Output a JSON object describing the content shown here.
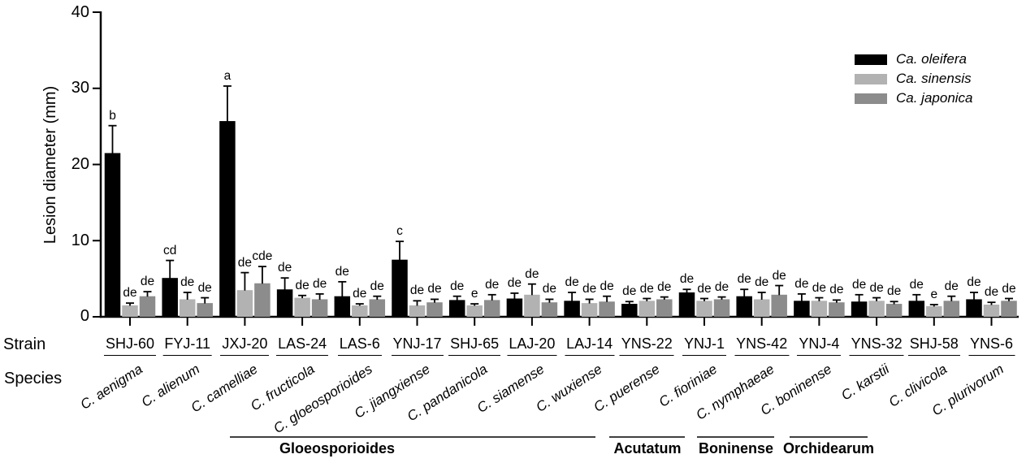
{
  "chart_data": {
    "type": "bar",
    "title": "",
    "ylabel": "Lesion diameter (mm)",
    "xlabel": "",
    "ylim": [
      0,
      40
    ],
    "yticks": [
      0,
      10,
      20,
      30,
      40
    ],
    "grid": false,
    "legend_position": "top-right",
    "x_axis_rows": {
      "strain": "Strain",
      "species": "Species"
    },
    "series": [
      {
        "name": "Ca. oleifera",
        "color": "#000000"
      },
      {
        "name": "Ca. sinensis",
        "color": "#b2b2b2"
      },
      {
        "name": "Ca. japonica",
        "color": "#8c8c8c"
      }
    ],
    "groups": [
      {
        "strain": "SHJ-60",
        "species": "C. aenigma",
        "values": [
          21.5,
          1.5,
          2.7
        ],
        "errors_up": [
          3.6,
          0.3,
          0.6
        ],
        "letters": [
          "b",
          "de",
          "de"
        ]
      },
      {
        "strain": "FYJ-11",
        "species": "C. alienum",
        "values": [
          5.1,
          2.3,
          1.8
        ],
        "errors_up": [
          2.3,
          0.9,
          0.7
        ],
        "letters": [
          "cd",
          "de",
          "de"
        ]
      },
      {
        "strain": "JXJ-20",
        "species": "C. camelliae",
        "values": [
          25.7,
          3.5,
          4.4
        ],
        "errors_up": [
          4.6,
          2.3,
          2.2
        ],
        "letters": [
          "a",
          "de",
          "cde"
        ]
      },
      {
        "strain": "LAS-24",
        "species": "C. fructicola",
        "values": [
          3.6,
          2.5,
          2.3
        ],
        "errors_up": [
          1.5,
          0.3,
          0.7
        ],
        "letters": [
          "de",
          "de",
          "de"
        ]
      },
      {
        "strain": "LAS-6",
        "species": "C. gloeosporioides",
        "values": [
          2.7,
          1.5,
          2.3
        ],
        "errors_up": [
          1.9,
          0.2,
          0.4
        ],
        "letters": [
          "de",
          "de",
          "de"
        ]
      },
      {
        "strain": "YNJ-17",
        "species": "C. jiangxiense",
        "values": [
          7.5,
          1.5,
          1.9
        ],
        "errors_up": [
          2.4,
          0.6,
          0.4
        ],
        "letters": [
          "c",
          "de",
          "de"
        ]
      },
      {
        "strain": "SHJ-65",
        "species": "C. pandanicola",
        "values": [
          2.2,
          1.5,
          2.2
        ],
        "errors_up": [
          0.5,
          0.2,
          0.7
        ],
        "letters": [
          "de",
          "e",
          "de"
        ]
      },
      {
        "strain": "LAJ-20",
        "species": "C. siamense",
        "values": [
          2.4,
          2.9,
          1.9
        ],
        "errors_up": [
          0.7,
          1.4,
          0.4
        ],
        "letters": [
          "de",
          "de",
          "de"
        ]
      },
      {
        "strain": "LAJ-14",
        "species": "C. wuxiense",
        "values": [
          2.1,
          1.8,
          2.0
        ],
        "errors_up": [
          1.1,
          0.5,
          0.7
        ],
        "letters": [
          "de",
          "de",
          "de"
        ]
      },
      {
        "strain": "YNS-22",
        "species": "C. puerense",
        "values": [
          1.7,
          2.1,
          2.3
        ],
        "errors_up": [
          0.3,
          0.3,
          0.3
        ],
        "letters": [
          "de",
          "de",
          "de"
        ]
      },
      {
        "strain": "YNJ-1",
        "species": "C. fioriniae",
        "values": [
          3.2,
          2.1,
          2.3
        ],
        "errors_up": [
          0.4,
          0.3,
          0.3
        ],
        "letters": [
          "de",
          "de",
          "de"
        ]
      },
      {
        "strain": "YNS-42",
        "species": "C. nymphaeae",
        "values": [
          2.7,
          2.3,
          2.9
        ],
        "errors_up": [
          0.9,
          0.9,
          1.2
        ],
        "letters": [
          "de",
          "de",
          "de"
        ]
      },
      {
        "strain": "YNJ-4",
        "species": "C. boninense",
        "values": [
          2.1,
          2.1,
          1.9
        ],
        "errors_up": [
          0.9,
          0.4,
          0.3
        ],
        "letters": [
          "de",
          "de",
          "de"
        ]
      },
      {
        "strain": "YNS-32",
        "species": "C. karstii",
        "values": [
          2.0,
          2.1,
          1.7
        ],
        "errors_up": [
          0.9,
          0.4,
          0.3
        ],
        "letters": [
          "de",
          "de",
          "de"
        ]
      },
      {
        "strain": "SHJ-58",
        "species": "C. clivicola",
        "values": [
          2.1,
          1.4,
          2.1
        ],
        "errors_up": [
          0.8,
          0.2,
          0.6
        ],
        "letters": [
          "de",
          "e",
          "de"
        ]
      },
      {
        "strain": "YNS-6",
        "species": "C. plurivorum",
        "values": [
          2.3,
          1.6,
          2.1
        ],
        "errors_up": [
          0.9,
          0.3,
          0.3
        ],
        "letters": [
          "de",
          "de",
          "de"
        ]
      }
    ],
    "species_complexes": [
      {
        "label": "Gloeosporioides",
        "strains": [
          "SHJ-60",
          "YNS-22"
        ]
      },
      {
        "label": "Acutatum",
        "strains": [
          "YNJ-1",
          "YNS-42"
        ]
      },
      {
        "label": "Boninense",
        "strains": [
          "YNJ-4",
          "YNS-32"
        ]
      },
      {
        "label": "Orchidearum",
        "strains": [
          "SHJ-58",
          "YNS-6"
        ]
      }
    ]
  }
}
